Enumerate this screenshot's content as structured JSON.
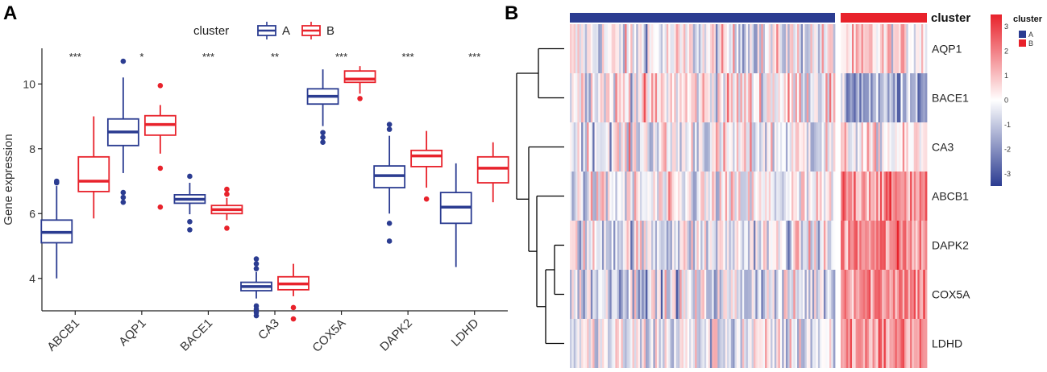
{
  "colors": {
    "cluster_A": "#2B3C91",
    "cluster_B": "#E8222B",
    "heat_low": "#2B3C91",
    "heat_mid": "#FFFFFF",
    "heat_high": "#E8222B"
  },
  "panel_a": {
    "letter": "A"
  },
  "panel_b": {
    "letter": "B"
  },
  "chart_data": [
    {
      "type": "box",
      "title": "",
      "xlabel": "",
      "ylabel": "Gene expression",
      "ylim": [
        3.0,
        11.1
      ],
      "yticks": [
        4,
        6,
        8,
        10
      ],
      "categories": [
        "ABCB1",
        "AQP1",
        "BACE1",
        "CA3",
        "COX5A",
        "DAPK2",
        "LDHD"
      ],
      "legend": {
        "title": "cluster",
        "entries": [
          "A",
          "B"
        ],
        "placement": "top"
      },
      "significance": [
        "***",
        "*",
        "***",
        "**",
        "***",
        "***",
        "***"
      ],
      "series": [
        {
          "name": "A",
          "boxes": [
            {
              "min": 4.0,
              "q1": 5.1,
              "median": 5.42,
              "q3": 5.8,
              "max": 6.85,
              "outliers": [
                6.95,
                7.0
              ]
            },
            {
              "min": 7.25,
              "q1": 8.1,
              "median": 8.52,
              "q3": 8.92,
              "max": 10.2,
              "outliers": [
                6.35,
                6.5,
                6.65,
                10.7
              ]
            },
            {
              "min": 5.98,
              "q1": 6.32,
              "median": 6.44,
              "q3": 6.58,
              "max": 6.95,
              "outliers": [
                5.5,
                5.75,
                7.15
              ]
            },
            {
              "min": 3.38,
              "q1": 3.62,
              "median": 3.75,
              "q3": 3.88,
              "max": 4.2,
              "outliers": [
                2.85,
                2.95,
                3.05,
                3.15,
                4.3,
                4.45,
                4.6
              ]
            },
            {
              "min": 8.7,
              "q1": 9.38,
              "median": 9.62,
              "q3": 9.85,
              "max": 10.45,
              "outliers": [
                8.2,
                8.35,
                8.5
              ]
            },
            {
              "min": 6.0,
              "q1": 6.8,
              "median": 7.17,
              "q3": 7.47,
              "max": 8.4,
              "outliers": [
                5.15,
                5.7,
                8.6,
                8.75
              ]
            },
            {
              "min": 4.35,
              "q1": 5.7,
              "median": 6.2,
              "q3": 6.65,
              "max": 7.55,
              "outliers": []
            }
          ]
        },
        {
          "name": "B",
          "boxes": [
            {
              "min": 5.85,
              "q1": 6.68,
              "median": 7.0,
              "q3": 7.75,
              "max": 9.0,
              "outliers": []
            },
            {
              "min": 7.85,
              "q1": 8.42,
              "median": 8.75,
              "q3": 9.02,
              "max": 9.35,
              "outliers": [
                6.2,
                7.4,
                9.95
              ]
            },
            {
              "min": 5.8,
              "q1": 6.0,
              "median": 6.12,
              "q3": 6.25,
              "max": 6.48,
              "outliers": [
                5.55,
                6.6,
                6.75
              ]
            },
            {
              "min": 3.45,
              "q1": 3.65,
              "median": 3.83,
              "q3": 4.05,
              "max": 4.45,
              "outliers": [
                2.75,
                3.1
              ]
            },
            {
              "min": 9.7,
              "q1": 10.05,
              "median": 10.15,
              "q3": 10.4,
              "max": 10.55,
              "outliers": [
                9.55
              ]
            },
            {
              "min": 6.8,
              "q1": 7.45,
              "median": 7.78,
              "q3": 7.95,
              "max": 8.55,
              "outliers": [
                6.45
              ]
            },
            {
              "min": 6.35,
              "q1": 6.95,
              "median": 7.4,
              "q3": 7.75,
              "max": 8.2,
              "outliers": []
            }
          ]
        }
      ]
    },
    {
      "type": "heatmap",
      "title": "",
      "annotation_label": "cluster",
      "rows": [
        "AQP1",
        "BACE1",
        "CA3",
        "ABCB1",
        "DAPK2",
        "COX5A",
        "LDHD"
      ],
      "groups": [
        {
          "name": "A",
          "samples": 140
        },
        {
          "name": "B",
          "samples": 46
        }
      ],
      "row_mean_by_group": {
        "AQP1": {
          "A": -0.15,
          "B": 0.45
        },
        "BACE1": {
          "A": 0.35,
          "B": -1.6
        },
        "CA3": {
          "A": -0.1,
          "B": 0.15
        },
        "ABCB1": {
          "A": -0.25,
          "B": 1.8
        },
        "DAPK2": {
          "A": -0.3,
          "B": 1.8
        },
        "COX5A": {
          "A": -0.5,
          "B": 2.0
        },
        "LDHD": {
          "A": -0.3,
          "B": 1.7
        }
      },
      "dendrogram_merges": [
        {
          "left": [
            "AQP1"
          ],
          "right": [
            "BACE1"
          ]
        },
        {
          "left": [
            "DAPK2"
          ],
          "right": [
            "COX5A"
          ]
        },
        {
          "left": [
            "DAPK2",
            "COX5A"
          ],
          "right": [
            "LDHD"
          ]
        },
        {
          "left": [
            "ABCB1"
          ],
          "right": [
            "DAPK2",
            "COX5A",
            "LDHD"
          ]
        },
        {
          "left": [
            "CA3"
          ],
          "right": [
            "ABCB1",
            "DAPK2",
            "COX5A",
            "LDHD"
          ]
        },
        {
          "left": [
            "AQP1",
            "BACE1"
          ],
          "right": [
            "CA3",
            "ABCB1",
            "DAPK2",
            "COX5A",
            "LDHD"
          ]
        }
      ],
      "colorbar": {
        "title": "cluster",
        "ticks": [
          3,
          2,
          1,
          0,
          -1,
          -2,
          -3
        ],
        "range": [
          -3.5,
          3.5
        ]
      },
      "legend_entries": [
        "A",
        "B"
      ]
    }
  ]
}
